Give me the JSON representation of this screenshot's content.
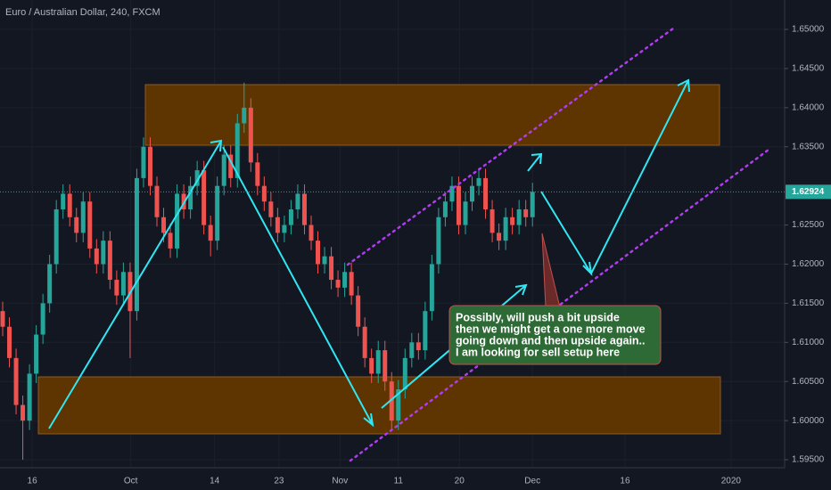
{
  "chart_data": {
    "type": "candlestick",
    "title": "Euro / Australian Dollar, 240, FXCM",
    "x": [
      0,
      1,
      2,
      3,
      4,
      5,
      6,
      7,
      8,
      9,
      10,
      11,
      12,
      13,
      14,
      15,
      16,
      17,
      18,
      19,
      20,
      21,
      22,
      23,
      24,
      25,
      26,
      27,
      28,
      29,
      30,
      31,
      32,
      33,
      34,
      35,
      36,
      37,
      38,
      39,
      40,
      41,
      42,
      43,
      44,
      45,
      46,
      47,
      48,
      49,
      50,
      51,
      52,
      53,
      54,
      55,
      56,
      57,
      58,
      59,
      60,
      61,
      62,
      63,
      64,
      65,
      66,
      67,
      68,
      69,
      70,
      71,
      72,
      73,
      74,
      75,
      76,
      77,
      78,
      79
    ],
    "open": [
      1.614,
      1.612,
      1.608,
      1.602,
      1.6,
      1.606,
      1.611,
      1.615,
      1.62,
      1.627,
      1.629,
      1.626,
      1.624,
      1.628,
      1.622,
      1.62,
      1.623,
      1.618,
      1.616,
      1.619,
      1.614,
      1.631,
      1.635,
      1.63,
      1.626,
      1.624,
      1.622,
      1.629,
      1.627,
      1.63,
      1.632,
      1.625,
      1.623,
      1.63,
      1.634,
      1.631,
      1.638,
      1.64,
      1.633,
      1.63,
      1.628,
      1.626,
      1.624,
      1.625,
      1.627,
      1.629,
      1.625,
      1.623,
      1.62,
      1.621,
      1.618,
      1.617,
      1.619,
      1.616,
      1.612,
      1.608,
      1.606,
      1.609,
      1.605,
      1.6,
      1.604,
      1.608,
      1.61,
      1.609,
      1.614,
      1.62,
      1.626,
      1.628,
      1.63,
      1.625,
      1.628,
      1.63,
      1.631,
      1.627,
      1.624,
      1.623,
      1.626,
      1.625,
      1.627,
      1.626
    ],
    "high": [
      1.6152,
      1.6132,
      1.6092,
      1.6032,
      1.6072,
      1.6122,
      1.6162,
      1.6212,
      1.6282,
      1.6302,
      1.6302,
      1.6272,
      1.6292,
      1.6292,
      1.6232,
      1.6242,
      1.6242,
      1.6192,
      1.6202,
      1.6202,
      1.6322,
      1.6362,
      1.6362,
      1.6312,
      1.6272,
      1.6252,
      1.6302,
      1.6302,
      1.6312,
      1.6332,
      1.6332,
      1.6262,
      1.6312,
      1.6352,
      1.6352,
      1.6392,
      1.6432,
      1.6412,
      1.6342,
      1.6312,
      1.6292,
      1.6272,
      1.6262,
      1.6282,
      1.6302,
      1.6302,
      1.6262,
      1.6242,
      1.6222,
      1.6222,
      1.6192,
      1.6202,
      1.6202,
      1.6172,
      1.6132,
      1.6092,
      1.6102,
      1.6102,
      1.6062,
      1.6052,
      1.6092,
      1.6112,
      1.6112,
      1.6152,
      1.6212,
      1.6272,
      1.6292,
      1.6312,
      1.6312,
      1.6292,
      1.6312,
      1.6322,
      1.6322,
      1.6282,
      1.6252,
      1.6272,
      1.6272,
      1.6282,
      1.6282,
      1.6304
    ],
    "low": [
      1.6108,
      1.6068,
      1.6008,
      1.595,
      1.5988,
      1.6048,
      1.6098,
      1.6138,
      1.6188,
      1.6258,
      1.6248,
      1.6228,
      1.6228,
      1.6208,
      1.6188,
      1.6188,
      1.6168,
      1.6148,
      1.6148,
      1.608,
      1.6128,
      1.6298,
      1.6288,
      1.6248,
      1.6228,
      1.6208,
      1.6208,
      1.6258,
      1.6258,
      1.6288,
      1.6238,
      1.621,
      1.6218,
      1.6288,
      1.6298,
      1.6298,
      1.6368,
      1.6318,
      1.6288,
      1.6268,
      1.6248,
      1.6228,
      1.6228,
      1.6238,
      1.6258,
      1.6238,
      1.6218,
      1.6188,
      1.6188,
      1.6168,
      1.6158,
      1.6158,
      1.6148,
      1.6108,
      1.6068,
      1.6048,
      1.6048,
      1.6038,
      1.5988,
      1.5988,
      1.6028,
      1.6068,
      1.6078,
      1.6078,
      1.6128,
      1.6188,
      1.6248,
      1.6268,
      1.6238,
      1.6238,
      1.6268,
      1.6288,
      1.6258,
      1.6228,
      1.6218,
      1.6218,
      1.6238,
      1.6238,
      1.6248,
      1.6248
    ],
    "close": [
      1.612,
      1.608,
      1.602,
      1.6,
      1.606,
      1.611,
      1.615,
      1.62,
      1.627,
      1.629,
      1.626,
      1.624,
      1.628,
      1.622,
      1.62,
      1.623,
      1.618,
      1.616,
      1.619,
      1.614,
      1.631,
      1.635,
      1.63,
      1.626,
      1.624,
      1.622,
      1.629,
      1.627,
      1.63,
      1.632,
      1.625,
      1.623,
      1.63,
      1.634,
      1.631,
      1.638,
      1.64,
      1.633,
      1.63,
      1.628,
      1.626,
      1.624,
      1.625,
      1.627,
      1.629,
      1.625,
      1.623,
      1.62,
      1.621,
      1.618,
      1.617,
      1.619,
      1.616,
      1.612,
      1.608,
      1.606,
      1.609,
      1.605,
      1.6,
      1.604,
      1.608,
      1.61,
      1.609,
      1.614,
      1.62,
      1.626,
      1.628,
      1.63,
      1.625,
      1.628,
      1.63,
      1.631,
      1.627,
      1.624,
      1.623,
      1.626,
      1.625,
      1.627,
      1.626,
      1.62924
    ],
    "up_color": "#26a69a",
    "down_color": "#ef5350",
    "xlim": [
      -0.4,
      116.6
    ],
    "ylim": [
      1.59398,
      1.65376
    ],
    "xticks": [
      {
        "value": 4.4,
        "label": "16"
      },
      {
        "value": 19.1,
        "label": "Oct"
      },
      {
        "value": 31.6,
        "label": "14"
      },
      {
        "value": 41.2,
        "label": "23"
      },
      {
        "value": 50.3,
        "label": "Nov"
      },
      {
        "value": 59.0,
        "label": "11"
      },
      {
        "value": 68.1,
        "label": "20"
      },
      {
        "value": 79.0,
        "label": "Dec"
      },
      {
        "value": 92.8,
        "label": "16"
      },
      {
        "value": 108.6,
        "label": "2020"
      }
    ],
    "yticks": [
      {
        "value": 1.595,
        "label": "1.59500"
      },
      {
        "value": 1.6,
        "label": "1.60000"
      },
      {
        "value": 1.605,
        "label": "1.60500"
      },
      {
        "value": 1.61,
        "label": "1.61000"
      },
      {
        "value": 1.615,
        "label": "1.61500"
      },
      {
        "value": 1.62,
        "label": "1.62000"
      },
      {
        "value": 1.625,
        "label": "1.62500"
      },
      {
        "value": 1.635,
        "label": "1.63500"
      },
      {
        "value": 1.64,
        "label": "1.64000"
      },
      {
        "value": 1.645,
        "label": "1.64500"
      },
      {
        "value": 1.65,
        "label": "1.65000"
      }
    ],
    "last_price": 1.62924,
    "annotation": [
      "Possibly, will push a bit upside",
      "then we might get a one more move",
      "going down and then upside again..",
      "I am looking for sell setup here"
    ]
  }
}
